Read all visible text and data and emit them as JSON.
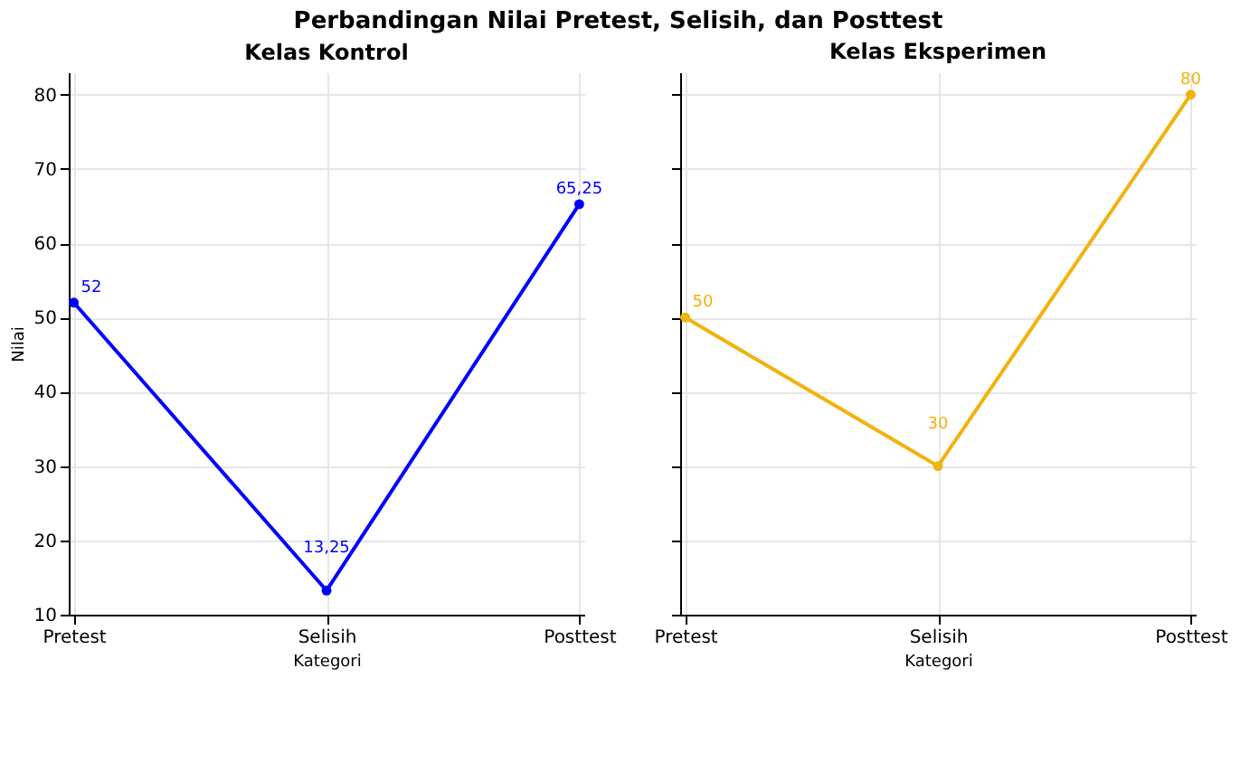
{
  "chart_data": [
    {
      "type": "line",
      "title": "Kelas Kontrol",
      "annotations": [
        "Perbandingan Nilai Pretest, Selisih, dan Posttest"
      ],
      "xlabel": "Kategori",
      "ylabel": "Nilai",
      "categories": [
        "Pretest",
        "Selisih",
        "Posttest"
      ],
      "series": [
        {
          "color": "#0000ff",
          "values": [
            52,
            13.25,
            65.25
          ],
          "value_labels": [
            "52",
            "13,25",
            "65,25"
          ]
        }
      ],
      "ylim": [
        10,
        83
      ],
      "yticks": [
        10,
        20,
        30,
        40,
        50,
        60,
        70,
        80
      ],
      "grid": true,
      "marker": "circle",
      "line_style": "solid"
    },
    {
      "type": "line",
      "title": "Kelas Eksperimen",
      "xlabel": "Kategori",
      "categories": [
        "Pretest",
        "Selisih",
        "Posttest"
      ],
      "series": [
        {
          "color": "#f2b20f",
          "values": [
            50,
            30,
            80
          ],
          "value_labels": [
            "50",
            "30",
            "80"
          ]
        }
      ],
      "ylim": [
        10,
        83
      ],
      "yticks": [
        10,
        20,
        30,
        40,
        50,
        60,
        70,
        80
      ],
      "grid": true,
      "marker": "circle",
      "line_style": "solid",
      "tick_labels": "x"
    }
  ]
}
